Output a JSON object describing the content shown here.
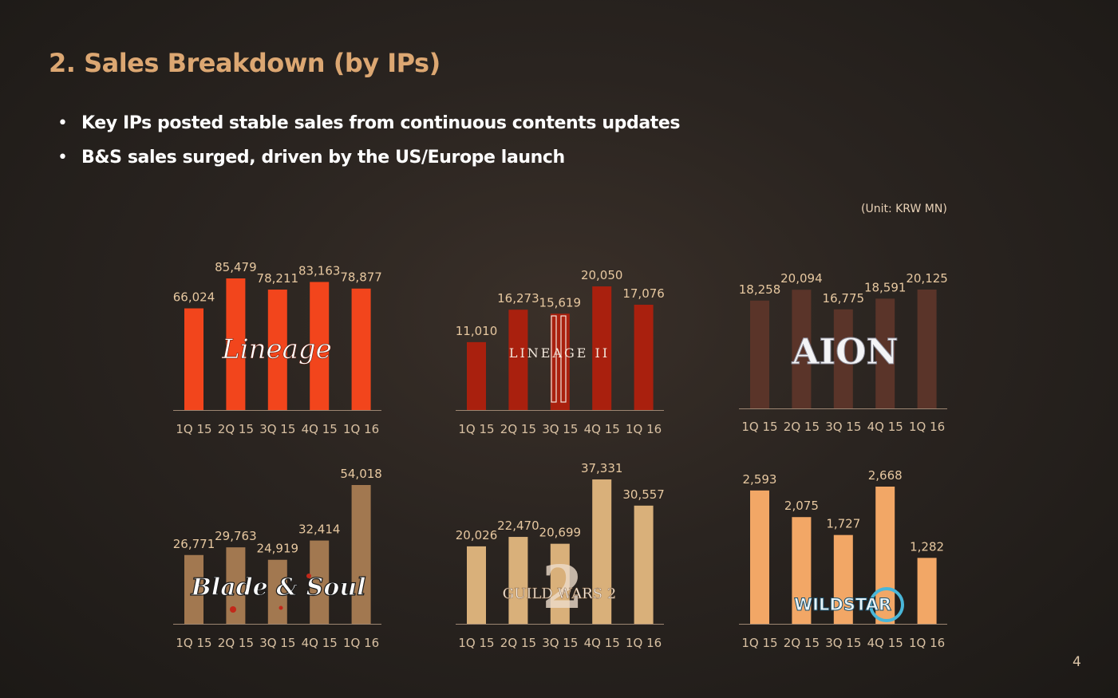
{
  "slide": {
    "title": "2. Sales Breakdown (by IPs)",
    "bullets": [
      "Key IPs posted stable sales from continuous contents updates",
      "B&S sales surged, driven by the US/Europe launch"
    ],
    "unit": "(Unit: KRW MN)",
    "page_number": "4"
  },
  "chart_data": [
    {
      "type": "bar",
      "logo": "Lineage",
      "logo_icon": "lineage-logo",
      "color": "#f2451c",
      "categories": [
        "1Q 15",
        "2Q 15",
        "3Q 15",
        "4Q 15",
        "1Q 16"
      ],
      "values": [
        66024,
        85479,
        78211,
        83163,
        78877
      ],
      "labels": [
        "66,024",
        "85,479",
        "78,211",
        "83,163",
        "78,877"
      ]
    },
    {
      "type": "bar",
      "logo": "LINEAGE II",
      "logo_icon": "lineage2-logo",
      "color": "#a9200e",
      "categories": [
        "1Q 15",
        "2Q 15",
        "3Q 15",
        "4Q 15",
        "1Q 16"
      ],
      "values": [
        11010,
        16273,
        15619,
        20050,
        17076
      ],
      "labels": [
        "11,010",
        "16,273",
        "15,619",
        "20,050",
        "17,076"
      ]
    },
    {
      "type": "bar",
      "logo": "AION",
      "logo_icon": "aion-logo",
      "color": "#5a3429",
      "categories": [
        "1Q 15",
        "2Q 15",
        "3Q 15",
        "4Q 15",
        "1Q 16"
      ],
      "values": [
        18258,
        20094,
        16775,
        18591,
        20125
      ],
      "labels": [
        "18,258",
        "20,094",
        "16,775",
        "18,591",
        "20,125"
      ]
    },
    {
      "type": "bar",
      "logo": "Blade & Soul",
      "logo_icon": "blade-and-soul-logo",
      "color": "#a27850",
      "categories": [
        "1Q 15",
        "2Q 15",
        "3Q 15",
        "4Q 15",
        "1Q 16"
      ],
      "values": [
        26771,
        29763,
        24919,
        32414,
        54018
      ],
      "labels": [
        "26,771",
        "29,763",
        "24,919",
        "32,414",
        "54,018"
      ]
    },
    {
      "type": "bar",
      "logo": "GUILD WARS 2",
      "logo_icon": "guild-wars-2-logo",
      "color": "#d9b07a",
      "categories": [
        "1Q 15",
        "2Q 15",
        "3Q 15",
        "4Q 15",
        "1Q 16"
      ],
      "values": [
        20026,
        22470,
        20699,
        37331,
        30557
      ],
      "labels": [
        "20,026",
        "22,470",
        "20,699",
        "37,331",
        "30,557"
      ]
    },
    {
      "type": "bar",
      "logo": "WILDSTAR",
      "logo_icon": "wildstar-logo",
      "color": "#f2a766",
      "categories": [
        "1Q 15",
        "2Q 15",
        "3Q 15",
        "4Q 15",
        "1Q 16"
      ],
      "values": [
        2593,
        2075,
        1727,
        2668,
        1282
      ],
      "labels": [
        "2,593",
        "2,075",
        "1,727",
        "2,668",
        "1,282"
      ]
    }
  ]
}
